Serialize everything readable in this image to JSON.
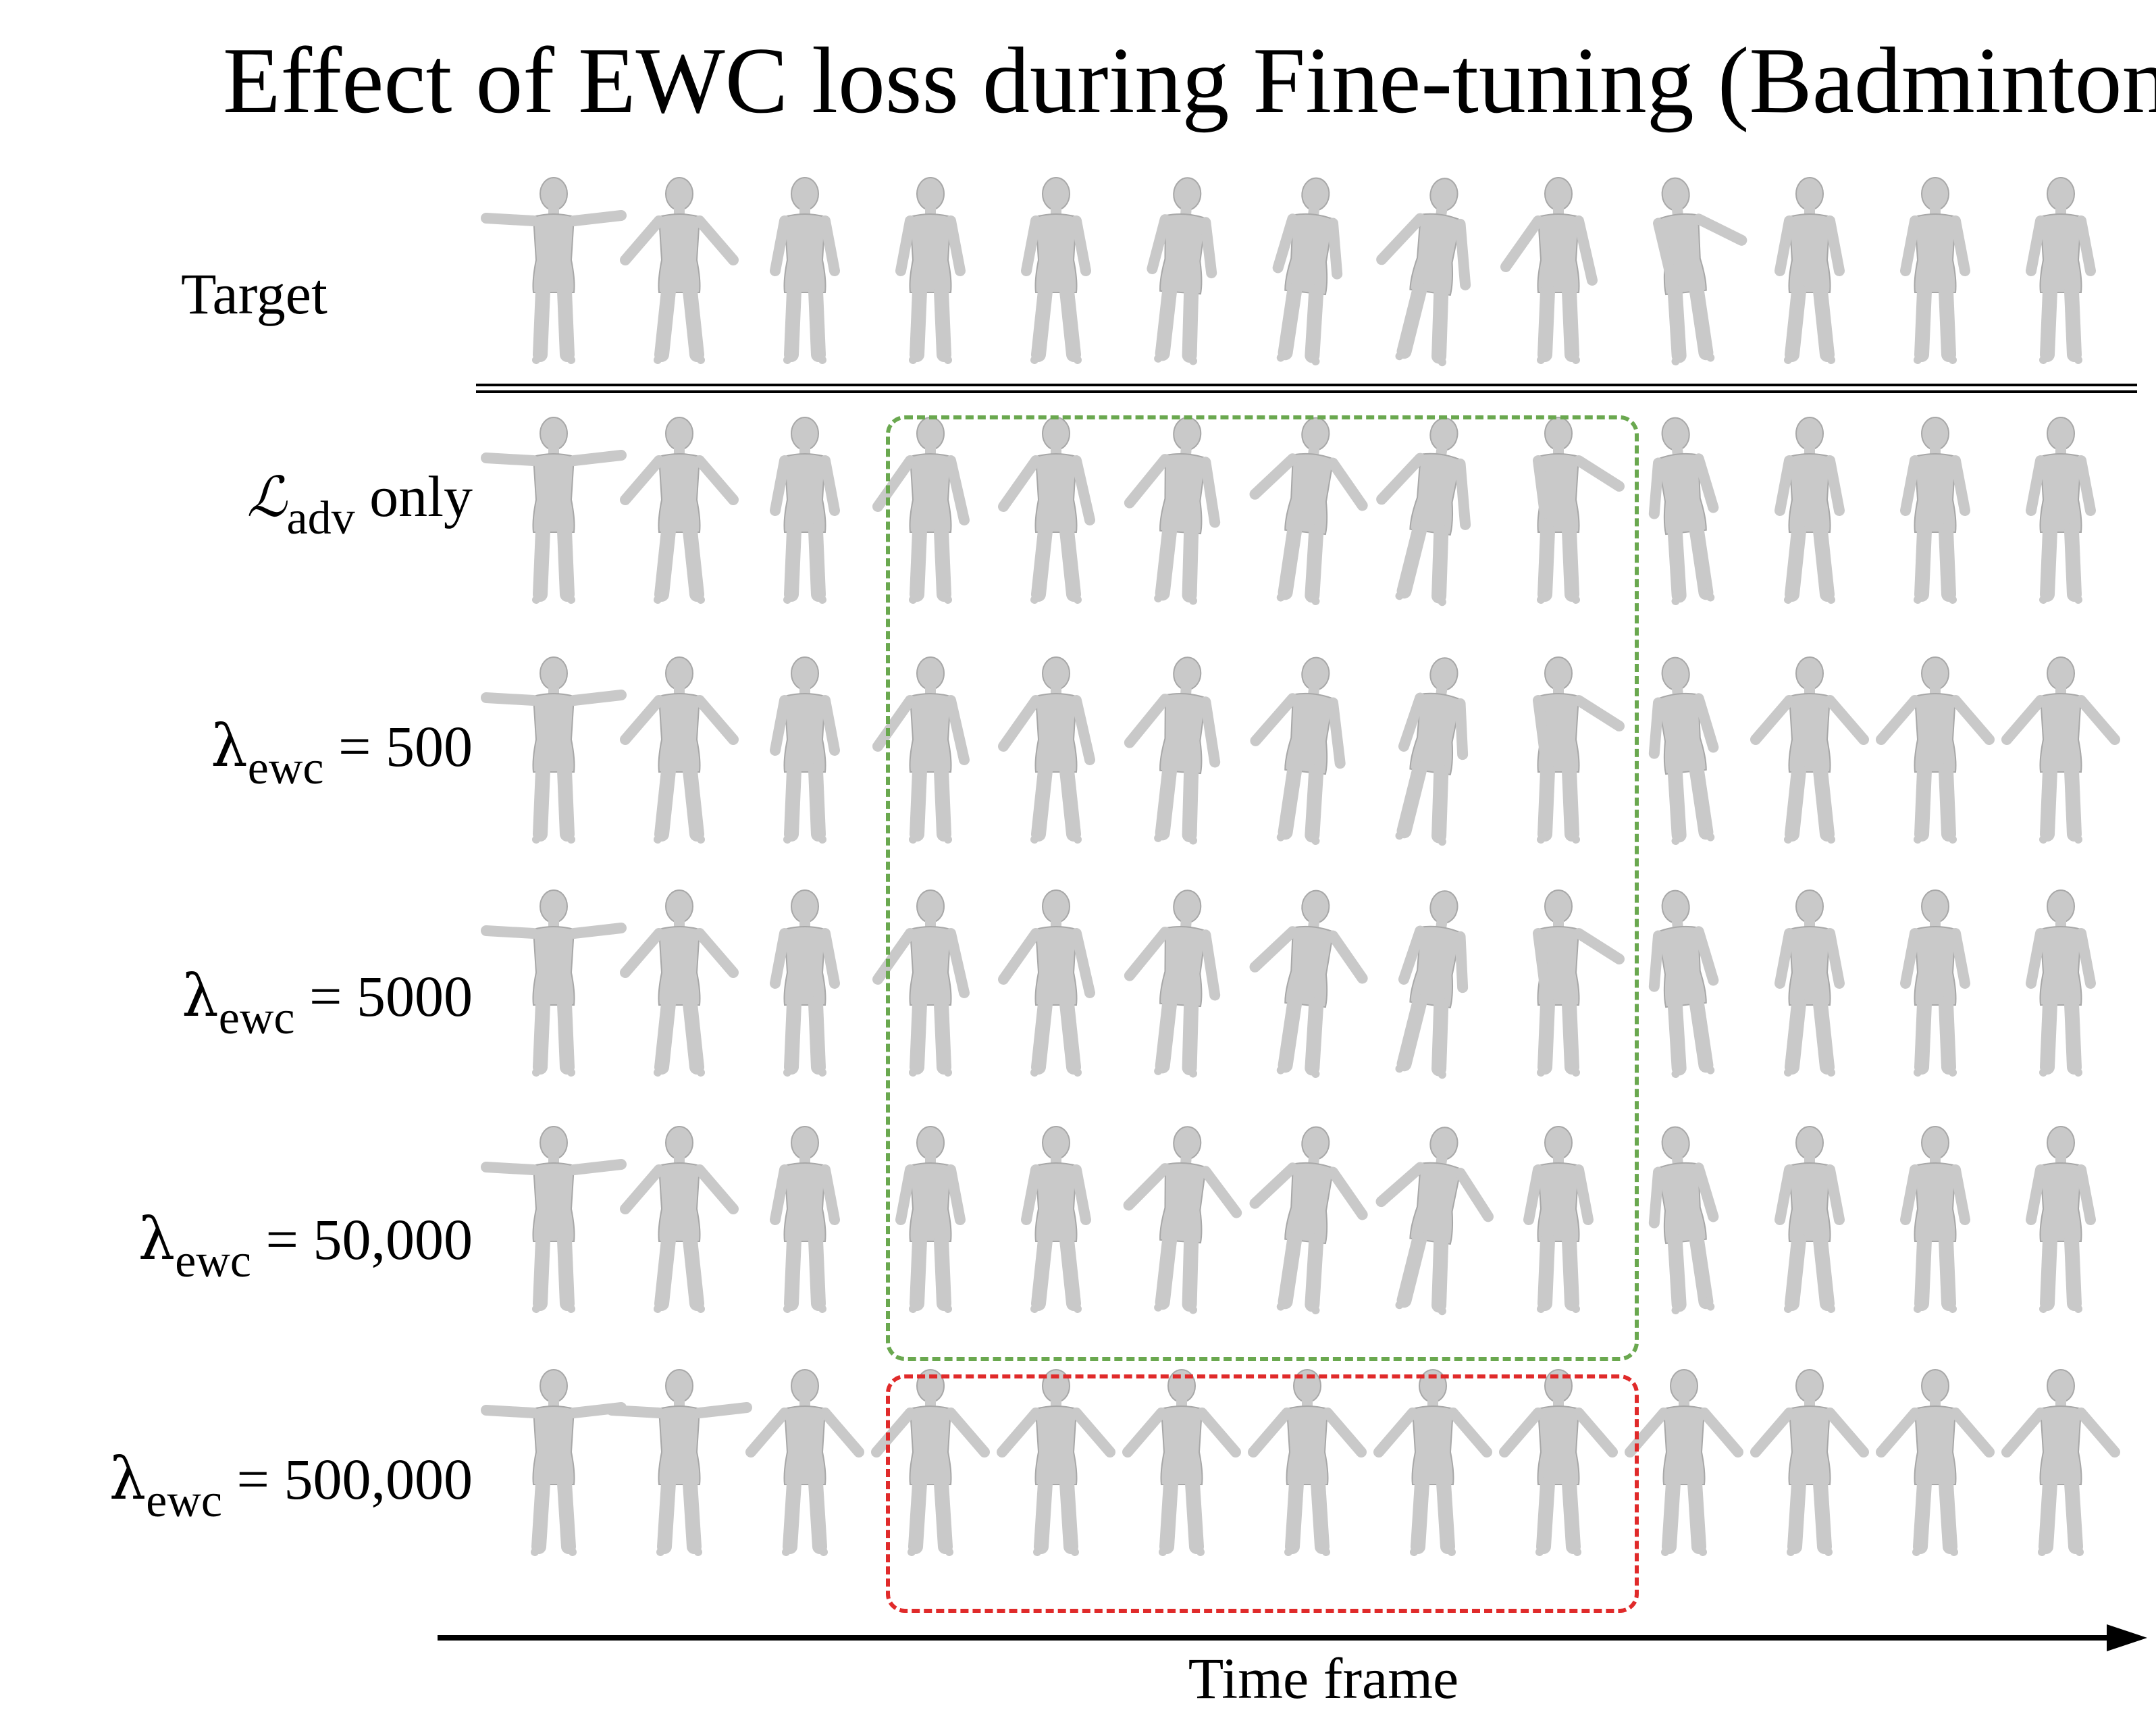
{
  "title": "Effect of EWC loss during Fine-tuning (Badminton)",
  "row_labels": {
    "target": "Target",
    "adv_only": {
      "symbol": "ℒ",
      "sub": "adv",
      "suffix": " only"
    },
    "ewc_500": {
      "symbol": "λ",
      "sub": "ewc",
      "value": " = 500"
    },
    "ewc_5000": {
      "symbol": "λ",
      "sub": "ewc",
      "value": " = 5000"
    },
    "ewc_50000": {
      "symbol": "λ",
      "sub": "ewc",
      "value": " = 50,000"
    },
    "ewc_500000": {
      "symbol": "λ",
      "sub": "ewc",
      "value": " = 500,000"
    }
  },
  "x_axis_label": "Time frame",
  "frames_per_row": 13,
  "highlight_frames": {
    "green": [
      4,
      9
    ],
    "red": [
      4,
      9
    ]
  },
  "colors": {
    "figure": "#c9c9c9",
    "figure_shadow": "#a8a8a8",
    "green_box": "#6aa84f",
    "red_box": "#e02a2a",
    "axis": "#000000"
  }
}
